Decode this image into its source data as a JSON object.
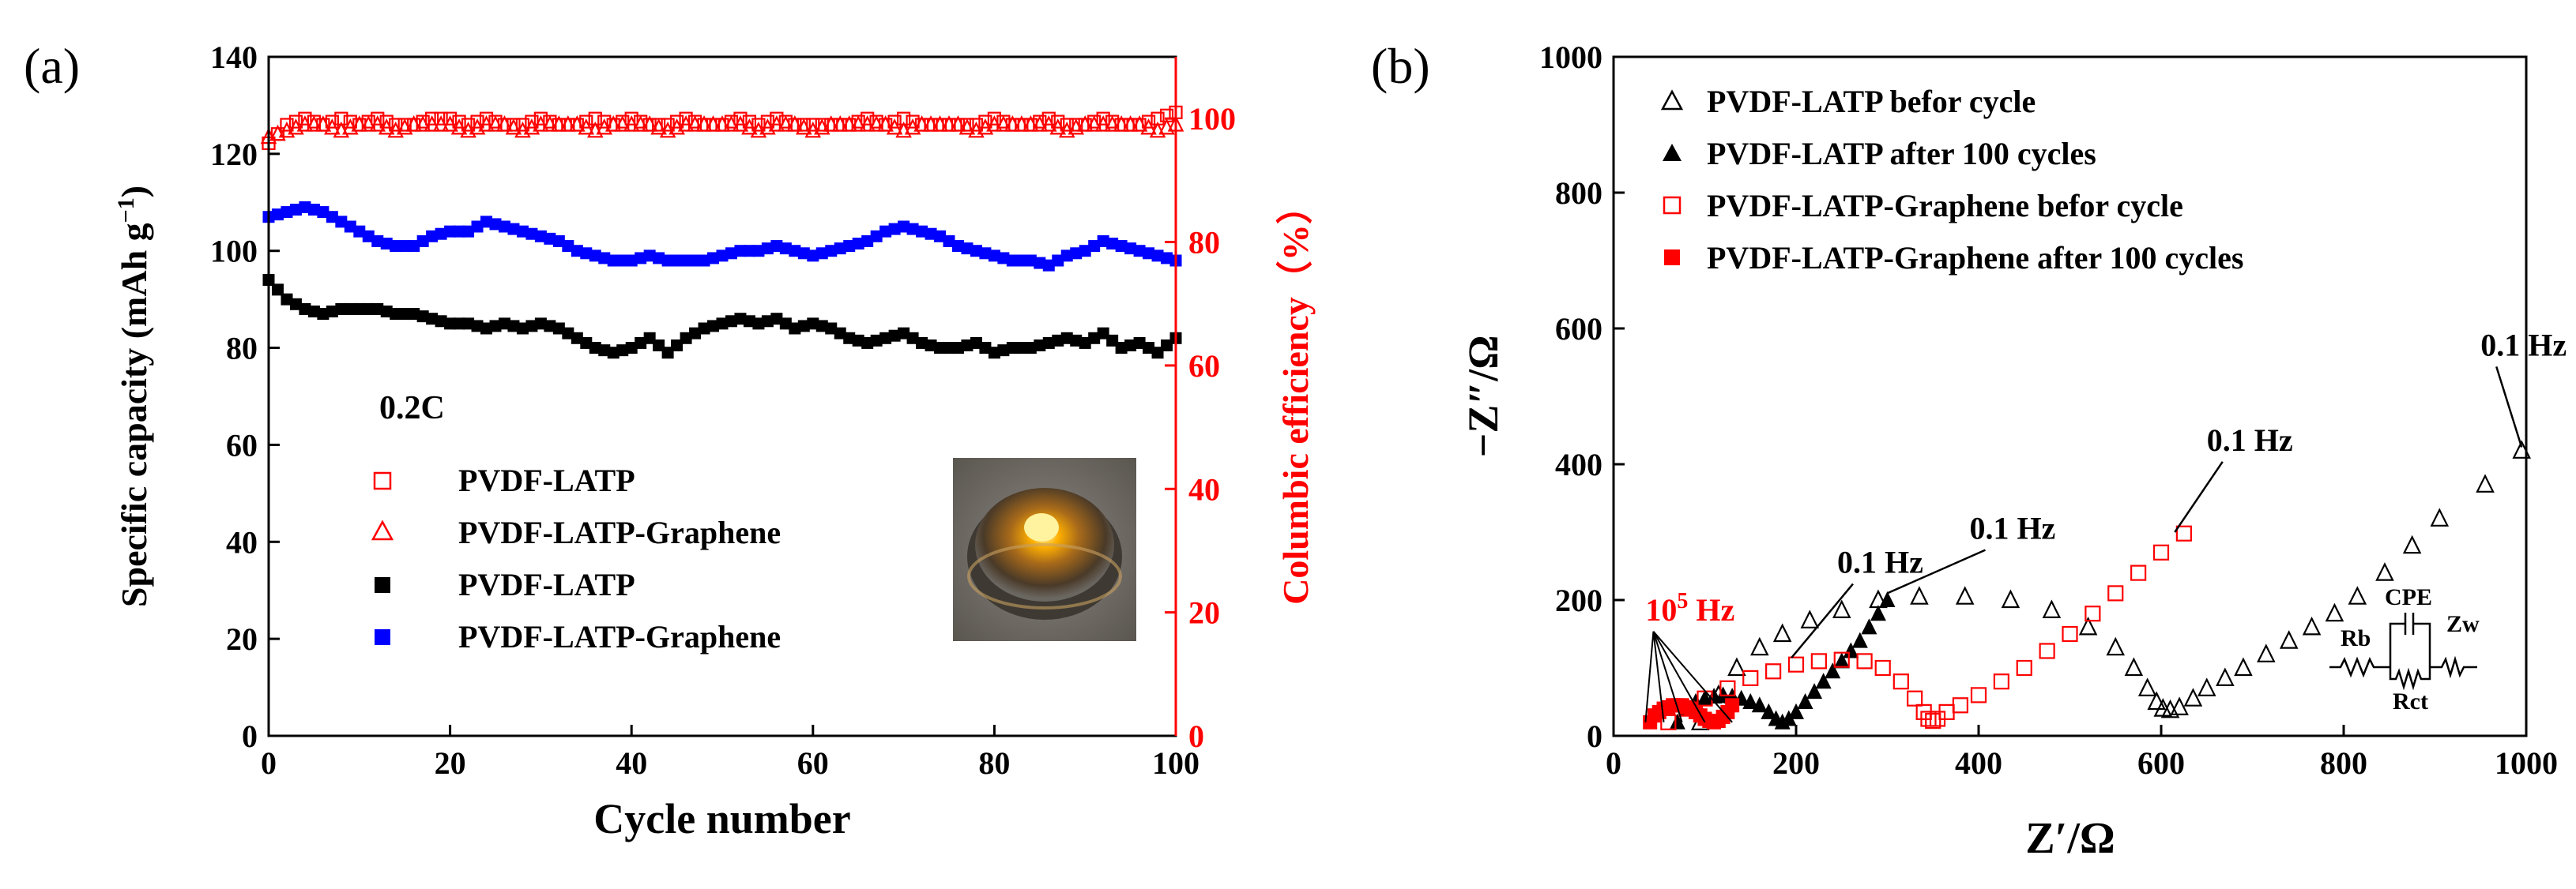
{
  "colors": {
    "axis": "#000000",
    "right_axis": "#ff0000",
    "black": "#000000",
    "blue": "#0000ff",
    "red": "#ff0000",
    "ce_marker": "#e04040"
  },
  "chart_data": [
    {
      "id": "a",
      "panel_label": "(a)",
      "type": "scatter",
      "xlabel": "Cycle number",
      "ylabel": "Specific capacity (mAh g",
      "ylabel_sup": "−1",
      "ylabel_end": ")",
      "y2label": "Columbic efficiency（%）",
      "xlim": [
        0,
        100
      ],
      "ylim": [
        0,
        140
      ],
      "y2lim": [
        0,
        110
      ],
      "xticks": [
        0,
        20,
        40,
        60,
        80,
        100
      ],
      "yticks": [
        0,
        20,
        40,
        60,
        80,
        100,
        120,
        140
      ],
      "y2ticks": [
        0,
        20,
        40,
        60,
        80,
        100
      ],
      "rate_label": "0.2C",
      "legend": [
        {
          "label": "PVDF-LATP",
          "marker": "square-open",
          "color": "#ff0000"
        },
        {
          "label": "PVDF-LATP-Graphene",
          "marker": "triangle-open",
          "color": "#ff0000"
        },
        {
          "label": "PVDF-LATP",
          "marker": "square",
          "color": "#000000"
        },
        {
          "label": "PVDF-LATP-Graphene",
          "marker": "square",
          "color": "#0000ff"
        }
      ],
      "inset_photo": "glowing LED in electrolyte cell",
      "series": [
        {
          "name": "PVDF-LATP (capacity)",
          "axis": "left",
          "marker": "square",
          "color": "#000000",
          "x": [
            0,
            2,
            4,
            6,
            8,
            10,
            12,
            14,
            16,
            18,
            20,
            22,
            24,
            26,
            28,
            30,
            32,
            34,
            36,
            38,
            40,
            42,
            44,
            46,
            48,
            50,
            52,
            54,
            56,
            58,
            60,
            62,
            64,
            66,
            68,
            70,
            72,
            74,
            76,
            78,
            80,
            82,
            84,
            86,
            88,
            90,
            92,
            94,
            96,
            98,
            100
          ],
          "y": [
            94,
            90,
            88,
            87,
            88,
            88,
            88,
            87,
            87,
            86,
            85,
            85,
            84,
            85,
            84,
            85,
            84,
            82,
            80,
            79,
            80,
            82,
            79,
            82,
            84,
            85,
            86,
            85,
            86,
            84,
            85,
            84,
            82,
            81,
            82,
            83,
            81,
            80,
            80,
            81,
            79,
            80,
            80,
            81,
            82,
            81,
            83,
            80,
            81,
            79,
            82
          ]
        },
        {
          "name": "PVDF-LATP-Graphene (capacity)",
          "axis": "left",
          "marker": "square",
          "color": "#0000ff",
          "x": [
            0,
            2,
            4,
            6,
            8,
            10,
            12,
            14,
            16,
            18,
            20,
            22,
            24,
            26,
            28,
            30,
            32,
            34,
            36,
            38,
            40,
            42,
            44,
            46,
            48,
            50,
            52,
            54,
            56,
            58,
            60,
            62,
            64,
            66,
            68,
            70,
            72,
            74,
            76,
            78,
            80,
            82,
            84,
            86,
            88,
            90,
            92,
            94,
            96,
            98,
            100
          ],
          "y": [
            107,
            108,
            109,
            108,
            106,
            104,
            102,
            101,
            101,
            103,
            104,
            104,
            106,
            105,
            104,
            103,
            102,
            100,
            99,
            98,
            98,
            99,
            98,
            98,
            98,
            99,
            100,
            100,
            101,
            100,
            99,
            100,
            101,
            102,
            104,
            105,
            104,
            103,
            101,
            100,
            99,
            98,
            98,
            97,
            99,
            100,
            102,
            101,
            100,
            99,
            98
          ]
        },
        {
          "name": "PVDF-LATP (CE)",
          "axis": "right",
          "marker": "square-open",
          "color": "#ff0000",
          "x": [
            0,
            2,
            4,
            6,
            8,
            10,
            12,
            14,
            16,
            18,
            20,
            22,
            24,
            26,
            28,
            30,
            32,
            34,
            36,
            38,
            40,
            42,
            44,
            46,
            48,
            50,
            52,
            54,
            56,
            58,
            60,
            62,
            64,
            66,
            68,
            70,
            72,
            74,
            76,
            78,
            80,
            82,
            84,
            86,
            88,
            90,
            92,
            94,
            96,
            98,
            100
          ],
          "y": [
            96,
            99,
            100,
            99,
            100,
            99,
            100,
            99,
            99,
            100,
            100,
            99,
            100,
            99,
            99,
            100,
            99,
            99,
            100,
            99,
            100,
            99,
            99,
            100,
            99,
            99,
            100,
            99,
            100,
            99,
            99,
            99,
            99,
            100,
            99,
            100,
            99,
            99,
            99,
            99,
            100,
            99,
            99,
            100,
            99,
            99,
            100,
            99,
            99,
            100,
            101
          ]
        },
        {
          "name": "PVDF-LATP-Graphene (CE)",
          "axis": "right",
          "marker": "triangle-open",
          "color": "#ff0000",
          "x": [
            0,
            2,
            4,
            6,
            8,
            10,
            12,
            14,
            16,
            18,
            20,
            22,
            24,
            26,
            28,
            30,
            32,
            34,
            36,
            38,
            40,
            42,
            44,
            46,
            48,
            50,
            52,
            54,
            56,
            58,
            60,
            62,
            64,
            66,
            68,
            70,
            72,
            74,
            76,
            78,
            80,
            82,
            84,
            86,
            88,
            90,
            92,
            94,
            96,
            98,
            100
          ],
          "y": [
            97,
            98,
            99,
            99,
            98,
            99,
            99,
            98,
            99,
            99,
            99,
            98,
            99,
            99,
            98,
            99,
            99,
            99,
            98,
            99,
            99,
            99,
            98,
            99,
            99,
            99,
            99,
            98,
            99,
            99,
            98,
            99,
            99,
            99,
            99,
            98,
            99,
            99,
            99,
            98,
            99,
            99,
            99,
            99,
            98,
            99,
            99,
            99,
            99,
            98,
            99
          ]
        }
      ]
    },
    {
      "id": "b",
      "panel_label": "(b)",
      "type": "scatter",
      "xlabel": "Z′/Ω",
      "ylabel": "−Z″/Ω",
      "xlim": [
        0,
        1000
      ],
      "ylim": [
        0,
        1000
      ],
      "xticks": [
        0,
        200,
        400,
        600,
        800,
        1000
      ],
      "yticks": [
        0,
        200,
        400,
        600,
        800,
        1000
      ],
      "legend": [
        {
          "label": "PVDF-LATP befor cycle",
          "marker": "triangle-open",
          "color": "#000000"
        },
        {
          "label": "PVDF-LATP after 100 cycles",
          "marker": "triangle",
          "color": "#000000"
        },
        {
          "label": "PVDF-LATP-Graphene befor cycle",
          "marker": "square-open",
          "color": "#ff0000"
        },
        {
          "label": "PVDF-LATP-Graphene after 100 cycles",
          "marker": "square",
          "color": "#ff0000"
        }
      ],
      "annotations": [
        {
          "text": "0.1 Hz",
          "color": "#000000",
          "x": 950,
          "y": 560,
          "to_x": 995,
          "to_y": 425
        },
        {
          "text": "0.1 Hz",
          "color": "#000000",
          "x": 650,
          "y": 420,
          "to_x": 615,
          "to_y": 300
        },
        {
          "text": "0.1 Hz",
          "color": "#000000",
          "x": 390,
          "y": 290,
          "to_x": 300,
          "to_y": 210
        },
        {
          "text": "0.1 Hz",
          "color": "#000000",
          "x": 245,
          "y": 240,
          "to_x": 195,
          "to_y": 115
        },
        {
          "text_base": "10",
          "text_sup": "5",
          "text_end": " Hz",
          "color": "#ff0000",
          "x": 35,
          "y": 170,
          "fan_to": [
            [
              35,
              20
            ],
            [
              55,
              20
            ],
            [
              75,
              20
            ],
            [
              100,
              20
            ],
            [
              130,
              20
            ]
          ]
        }
      ],
      "circuit": {
        "labels": [
          "Rb",
          "CPE",
          "Zw",
          "Rct"
        ]
      },
      "series": [
        {
          "name": "PVDF-LATP befor cycle",
          "marker": "triangle-open",
          "color": "#000000",
          "x": [
            95,
            115,
            135,
            160,
            185,
            215,
            250,
            290,
            335,
            385,
            435,
            480,
            520,
            550,
            570,
            585,
            595,
            602,
            610,
            620,
            635,
            650,
            670,
            690,
            715,
            740,
            765,
            790,
            815,
            845,
            875,
            905,
            955,
            995
          ],
          "y": [
            20,
            60,
            100,
            130,
            150,
            170,
            185,
            200,
            205,
            205,
            200,
            185,
            160,
            130,
            100,
            70,
            50,
            40,
            38,
            42,
            55,
            70,
            85,
            100,
            120,
            140,
            160,
            180,
            205,
            240,
            280,
            320,
            370,
            420
          ]
        },
        {
          "name": "PVDF-LATP after 100 cycles",
          "marker": "triangle",
          "color": "#000000",
          "x": [
            70,
            80,
            90,
            100,
            110,
            120,
            130,
            140,
            150,
            160,
            170,
            178,
            185,
            192,
            200,
            210,
            220,
            230,
            240,
            250,
            260,
            270,
            280,
            290,
            300
          ],
          "y": [
            20,
            40,
            50,
            55,
            58,
            60,
            58,
            55,
            50,
            45,
            35,
            25,
            20,
            25,
            35,
            50,
            65,
            80,
            95,
            110,
            125,
            140,
            160,
            180,
            200
          ]
        },
        {
          "name": "PVDF-LATP-Graphene befor cycle",
          "marker": "square-open",
          "color": "#ff0000",
          "x": [
            60,
            80,
            100,
            125,
            150,
            175,
            200,
            225,
            250,
            275,
            295,
            315,
            330,
            340,
            345,
            350,
            355,
            365,
            380,
            400,
            425,
            450,
            475,
            500,
            525,
            550,
            575,
            600,
            625
          ],
          "y": [
            20,
            40,
            55,
            70,
            85,
            95,
            105,
            110,
            112,
            110,
            100,
            80,
            55,
            35,
            25,
            22,
            25,
            35,
            45,
            60,
            80,
            100,
            125,
            150,
            180,
            210,
            240,
            270,
            298
          ]
        },
        {
          "name": "PVDF-LATP-Graphene after 100 cycles",
          "marker": "square",
          "color": "#ff0000",
          "x": [
            40,
            45,
            50,
            55,
            60,
            65,
            70,
            75,
            80,
            85,
            90,
            95,
            100,
            105,
            110,
            115,
            120,
            125,
            130
          ],
          "y": [
            20,
            30,
            35,
            40,
            42,
            45,
            45,
            45,
            42,
            40,
            35,
            30,
            25,
            22,
            20,
            22,
            28,
            35,
            45
          ]
        }
      ]
    }
  ]
}
